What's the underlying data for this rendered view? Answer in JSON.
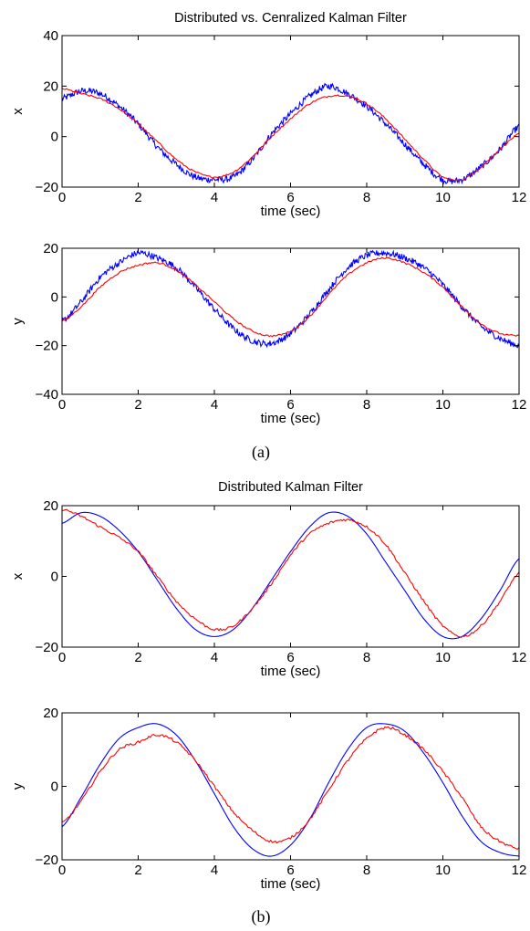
{
  "figure": {
    "caption_a": "(a)",
    "caption_b": "(b)",
    "colors": {
      "blue": "#0000ff",
      "red": "#ff0000",
      "axis": "#000000"
    }
  },
  "chart_data": [
    {
      "type": "line",
      "title": "Distributed vs. Cenralized Kalman Filter",
      "xlabel": "time (sec)",
      "ylabel": "x",
      "xlim": [
        0,
        12
      ],
      "ylim": [
        -20,
        40
      ],
      "xticks": [
        "0",
        "2",
        "4",
        "6",
        "8",
        "10",
        "12"
      ],
      "yticks": [
        "−20",
        "0",
        "20",
        "40"
      ],
      "grid": false,
      "series": [
        {
          "color": "blue",
          "noisy": true,
          "x": [
            0,
            0.5,
            1,
            1.5,
            2,
            2.5,
            3,
            3.5,
            4,
            4.5,
            5,
            5.5,
            6,
            6.5,
            7,
            7.5,
            8,
            8.5,
            9,
            9.5,
            10,
            10.5,
            11,
            11.5,
            12
          ],
          "y": [
            15,
            18,
            17,
            12,
            5,
            -4,
            -11,
            -16,
            -17,
            -16,
            -9,
            1,
            9,
            16,
            20,
            17,
            12,
            5,
            -3,
            -11,
            -17,
            -17,
            -12,
            -5,
            4
          ]
        },
        {
          "color": "red",
          "noisy": false,
          "x": [
            0,
            0.5,
            1,
            1.5,
            2,
            2.5,
            3,
            3.5,
            4,
            4.5,
            5,
            5.5,
            6,
            6.5,
            7,
            7.5,
            8,
            8.5,
            9,
            9.5,
            10,
            10.5,
            11,
            11.5,
            12
          ],
          "y": [
            19,
            17,
            15,
            11,
            5,
            -2,
            -9,
            -14,
            -16,
            -14,
            -8,
            0,
            7,
            13,
            16,
            16,
            13,
            7,
            -1,
            -9,
            -16,
            -17,
            -12,
            -5,
            1
          ]
        }
      ]
    },
    {
      "type": "line",
      "xlabel": "time (sec)",
      "ylabel": "y",
      "xlim": [
        0,
        12
      ],
      "ylim": [
        -40,
        20
      ],
      "xticks": [
        "0",
        "2",
        "4",
        "6",
        "8",
        "10",
        "12"
      ],
      "yticks": [
        "−40",
        "−20",
        "0",
        "20"
      ],
      "grid": false,
      "series": [
        {
          "color": "blue",
          "noisy": true,
          "x": [
            0,
            0.5,
            1,
            1.5,
            2,
            2.5,
            3,
            3.5,
            4,
            4.5,
            5,
            5.5,
            6,
            6.5,
            7,
            7.5,
            8,
            8.5,
            9,
            9.5,
            10,
            10.5,
            11,
            11.5,
            12
          ],
          "y": [
            -10,
            -2,
            8,
            14,
            18,
            16,
            12,
            4,
            -5,
            -13,
            -18,
            -19,
            -15,
            -7,
            3,
            12,
            17,
            18,
            16,
            12,
            5,
            -4,
            -12,
            -17,
            -20
          ]
        },
        {
          "color": "red",
          "noisy": false,
          "x": [
            0,
            0.5,
            1,
            1.5,
            2,
            2.5,
            3,
            3.5,
            4,
            4.5,
            5,
            5.5,
            6,
            6.5,
            7,
            7.5,
            8,
            8.5,
            9,
            9.5,
            10,
            10.5,
            11,
            11.5,
            12
          ],
          "y": [
            -10,
            -4,
            4,
            10,
            13,
            14,
            11,
            5,
            -2,
            -9,
            -14,
            -16,
            -14,
            -8,
            1,
            9,
            14,
            16,
            14,
            10,
            4,
            -4,
            -11,
            -15,
            -16
          ]
        }
      ]
    },
    {
      "type": "line",
      "title": "Distributed Kalman Filter",
      "xlabel": "time (sec)",
      "ylabel": "x",
      "xlim": [
        0,
        12
      ],
      "ylim": [
        -20,
        20
      ],
      "xticks": [
        "0",
        "2",
        "4",
        "6",
        "8",
        "10",
        "12"
      ],
      "yticks": [
        "−20",
        "0",
        "20"
      ],
      "grid": false,
      "series": [
        {
          "color": "blue",
          "noisy": false,
          "x": [
            0,
            0.5,
            1,
            1.5,
            2,
            2.5,
            3,
            3.5,
            4,
            4.5,
            5,
            5.5,
            6,
            6.5,
            7,
            7.5,
            8,
            8.5,
            9,
            9.5,
            10,
            10.5,
            11,
            11.5,
            12
          ],
          "y": [
            15,
            18,
            17,
            13,
            7,
            -1,
            -9,
            -15,
            -17,
            -15,
            -9,
            -1,
            7,
            14,
            18,
            17,
            12,
            4,
            -4,
            -12,
            -17,
            -17,
            -12,
            -4,
            5
          ]
        },
        {
          "color": "red",
          "noisy": false,
          "x": [
            0,
            0.5,
            1,
            1.5,
            2,
            2.5,
            3,
            3.5,
            4,
            4.5,
            5,
            5.5,
            6,
            6.5,
            7,
            7.5,
            8,
            8.5,
            9,
            9.5,
            10,
            10.5,
            11,
            11.5,
            12
          ],
          "y": [
            19,
            17,
            14,
            11,
            7,
            0,
            -7,
            -12,
            -15,
            -14,
            -9,
            -2,
            6,
            12,
            15,
            16,
            14,
            9,
            1,
            -7,
            -14,
            -17,
            -14,
            -7,
            1
          ]
        }
      ]
    },
    {
      "type": "line",
      "xlabel": "time (sec)",
      "ylabel": "y",
      "xlim": [
        0,
        12
      ],
      "ylim": [
        -20,
        20
      ],
      "xticks": [
        "0",
        "2",
        "4",
        "6",
        "8",
        "10",
        "12"
      ],
      "yticks": [
        "−20",
        "0",
        "20"
      ],
      "grid": false,
      "series": [
        {
          "color": "blue",
          "noisy": false,
          "x": [
            0,
            0.5,
            1,
            1.5,
            2,
            2.5,
            3,
            3.5,
            4,
            4.5,
            5,
            5.5,
            6,
            6.5,
            7,
            7.5,
            8,
            8.5,
            9,
            9.5,
            10,
            10.5,
            11,
            11.5,
            12
          ],
          "y": [
            -11,
            -3,
            6,
            13,
            16,
            17,
            14,
            7,
            -2,
            -11,
            -17,
            -19,
            -16,
            -9,
            1,
            10,
            16,
            17,
            15,
            9,
            1,
            -8,
            -15,
            -18,
            -19
          ]
        },
        {
          "color": "red",
          "noisy": false,
          "x": [
            0,
            0.5,
            1,
            1.5,
            2,
            2.5,
            3,
            3.5,
            4,
            4.5,
            5,
            5.5,
            6,
            6.5,
            7,
            7.5,
            8,
            8.5,
            9,
            9.5,
            10,
            10.5,
            11,
            11.5,
            12
          ],
          "y": [
            -10,
            -4,
            4,
            10,
            12,
            14,
            12,
            7,
            0,
            -7,
            -12,
            -15,
            -14,
            -9,
            -1,
            7,
            13,
            16,
            14,
            10,
            4,
            -3,
            -11,
            -15,
            -17
          ]
        }
      ]
    }
  ]
}
